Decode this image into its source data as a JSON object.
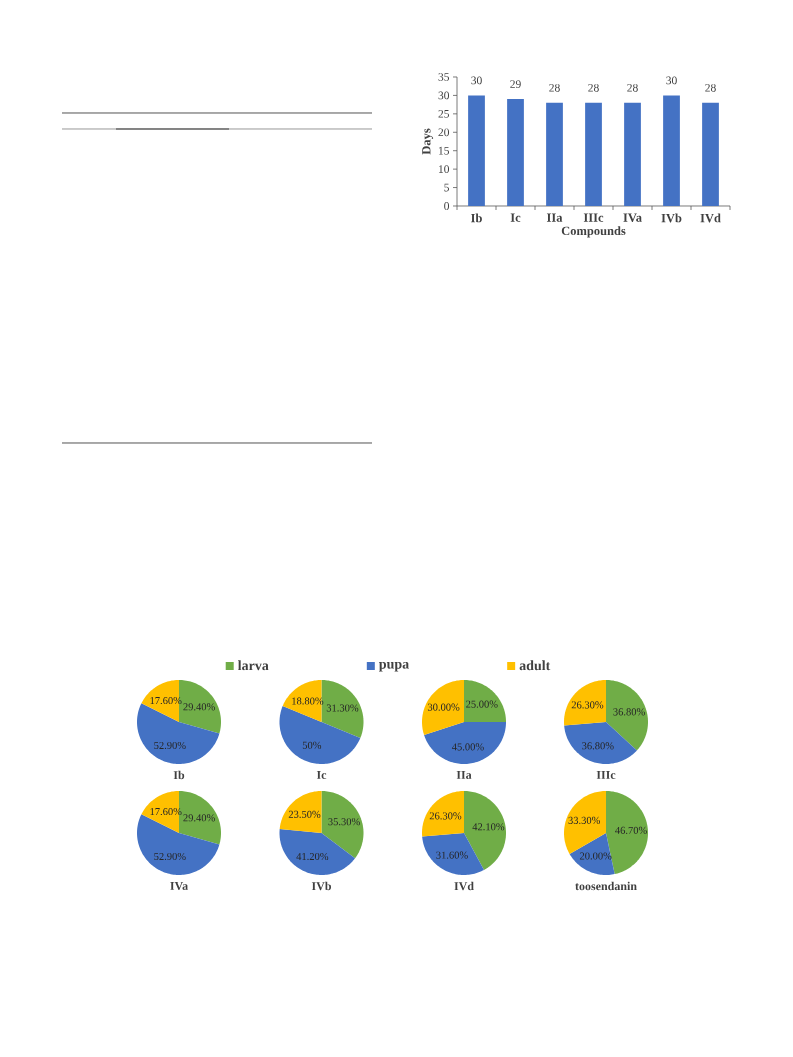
{
  "chart_data": [
    {
      "type": "bar",
      "categories": [
        "Ib",
        "Ic",
        "IIa",
        "IIIc",
        "IVa",
        "IVb",
        "IVd"
      ],
      "values": [
        30,
        29,
        28,
        28,
        28,
        30,
        28
      ],
      "color": "#4472c4",
      "xlabel": "Compounds",
      "ylabel": "Days",
      "ylim": [
        0,
        35
      ],
      "yticks": [
        0,
        5,
        10,
        15,
        20,
        25,
        30,
        35
      ],
      "data_labels": true
    },
    {
      "type": "pie",
      "title": "Ib",
      "categories": [
        "larva",
        "pupa",
        "adult"
      ],
      "values": [
        29.4,
        52.9,
        17.6
      ],
      "value_labels": [
        "29.40%",
        "52.90%",
        "17.60%"
      ],
      "colors": [
        "#70ad47",
        "#4472c4",
        "#ffc000"
      ],
      "legend": "top"
    },
    {
      "type": "pie",
      "title": "Ic",
      "categories": [
        null,
        null,
        null
      ],
      "values": [
        31.3,
        50,
        18.8
      ],
      "value_labels": [
        "31.30%",
        "50%",
        "18.80%"
      ],
      "colors": [
        "#70ad47",
        "#4472c4",
        "#ffc000"
      ]
    },
    {
      "type": "pie",
      "title": "IIa",
      "categories": [
        null,
        null,
        null
      ],
      "values": [
        25,
        45,
        30
      ],
      "value_labels": [
        "25.00%",
        "45.00%",
        "30.00%"
      ],
      "colors": [
        "#70ad47",
        "#4472c4",
        "#ffc000"
      ]
    },
    {
      "type": "pie",
      "title": "IIIc",
      "categories": [
        null,
        null,
        null
      ],
      "values": [
        36.8,
        36.8,
        26.3
      ],
      "value_labels": [
        "36.80%",
        "36.80%",
        "26.30%"
      ],
      "colors": [
        "#70ad47",
        "#4472c4",
        "#ffc000"
      ]
    },
    {
      "type": "pie",
      "title": "IVa",
      "categories": [
        null,
        null,
        null
      ],
      "values": [
        29.4,
        52.9,
        17.6
      ],
      "value_labels": [
        "29.40%",
        "52.90%",
        "17.60%"
      ],
      "colors": [
        "#70ad47",
        "#4472c4",
        "#ffc000"
      ]
    },
    {
      "type": "pie",
      "title": "IVb",
      "categories": [
        null,
        null,
        null
      ],
      "values": [
        35.3,
        41.2,
        23.5
      ],
      "value_labels": [
        "35.30%",
        "41.20%",
        "23.50%"
      ],
      "colors": [
        "#70ad47",
        "#4472c4",
        "#ffc000"
      ]
    },
    {
      "type": "pie",
      "title": "IVd",
      "categories": [
        null,
        null,
        null
      ],
      "values": [
        42.1,
        31.6,
        26.3
      ],
      "value_labels": [
        "42.10%",
        "31.60%",
        "26.30%"
      ],
      "colors": [
        "#70ad47",
        "#4472c4",
        "#ffc000"
      ]
    },
    {
      "type": "pie",
      "title": "toosendanin",
      "categories": [
        null,
        null,
        null
      ],
      "values": [
        46.7,
        20.0,
        33.3
      ],
      "value_labels": [
        "46.70%",
        "20.00%",
        "33.30%"
      ],
      "colors": [
        "#70ad47",
        "#4472c4",
        "#ffc000"
      ]
    }
  ]
}
